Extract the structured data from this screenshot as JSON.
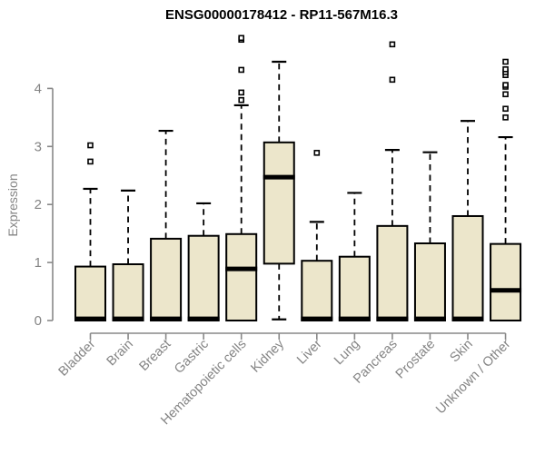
{
  "chart_data": {
    "type": "boxplot",
    "title": "ENSG00000178412 - RP11-567M16.3",
    "xlabel": "",
    "ylabel": "Expression",
    "ylim": [
      0,
      4.9
    ],
    "yticks": [
      0,
      1,
      2,
      3,
      4
    ],
    "grid": false,
    "legend": "none",
    "colors": {
      "box_fill": "#ece6cb",
      "box_stroke": "#000000",
      "median": "#000000",
      "whisker": "#000000",
      "axis": "#888888",
      "tick_label": "#848484",
      "title": "#000000",
      "background": "#ffffff"
    },
    "categories": [
      "Bladder",
      "Brain",
      "Breast",
      "Gastric",
      "Hematopoietic cells",
      "Kidney",
      "Liver",
      "Lung",
      "Pancreas",
      "Prostate",
      "Skin",
      "Unknown / Other"
    ],
    "series": [
      {
        "name": "Bladder",
        "low": 0,
        "q1": 0,
        "median": 0.03,
        "q3": 0.93,
        "high": 2.27,
        "outliers": [
          2.74,
          3.02
        ]
      },
      {
        "name": "Brain",
        "low": 0,
        "q1": 0,
        "median": 0.03,
        "q3": 0.97,
        "high": 2.24,
        "outliers": []
      },
      {
        "name": "Breast",
        "low": 0,
        "q1": 0,
        "median": 0.03,
        "q3": 1.41,
        "high": 3.27,
        "outliers": []
      },
      {
        "name": "Gastric",
        "low": 0,
        "q1": 0,
        "median": 0.03,
        "q3": 1.46,
        "high": 2.02,
        "outliers": []
      },
      {
        "name": "Hematopoietic cells",
        "low": 0,
        "q1": 0,
        "median": 0.89,
        "q3": 1.49,
        "high": 3.71,
        "outliers": [
          3.8,
          3.93,
          4.32,
          4.84,
          4.87
        ]
      },
      {
        "name": "Kidney",
        "low": 0.02,
        "q1": 0.98,
        "median": 2.47,
        "q3": 3.07,
        "high": 4.46,
        "outliers": []
      },
      {
        "name": "Liver",
        "low": 0,
        "q1": 0,
        "median": 0.03,
        "q3": 1.03,
        "high": 1.7,
        "outliers": [
          2.89
        ]
      },
      {
        "name": "Lung",
        "low": 0,
        "q1": 0,
        "median": 0.03,
        "q3": 1.1,
        "high": 2.2,
        "outliers": []
      },
      {
        "name": "Pancreas",
        "low": 0,
        "q1": 0,
        "median": 0.03,
        "q3": 1.63,
        "high": 2.94,
        "outliers": [
          4.15,
          4.76
        ]
      },
      {
        "name": "Prostate",
        "low": 0,
        "q1": 0,
        "median": 0.03,
        "q3": 1.33,
        "high": 2.9,
        "outliers": []
      },
      {
        "name": "Skin",
        "low": 0,
        "q1": 0,
        "median": 0.03,
        "q3": 1.8,
        "high": 3.44,
        "outliers": []
      },
      {
        "name": "Unknown / Other",
        "low": 0,
        "q1": 0,
        "median": 0.52,
        "q3": 1.32,
        "high": 3.16,
        "outliers": [
          3.5,
          3.65,
          3.9,
          4.03,
          4.06,
          4.23,
          4.28,
          4.33,
          4.46
        ]
      }
    ]
  }
}
